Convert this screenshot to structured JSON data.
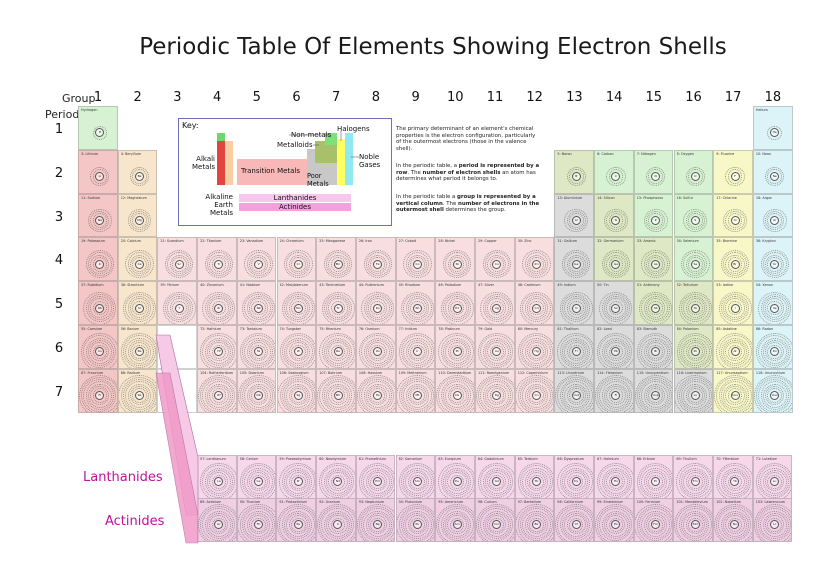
{
  "title": "Periodic Table Of Elements Showing Electron Shells",
  "axis": {
    "group_label": "Group",
    "period_label": "Period"
  },
  "groups": [
    "1",
    "2",
    "3",
    "4",
    "5",
    "6",
    "7",
    "8",
    "9",
    "10",
    "11",
    "12",
    "13",
    "14",
    "15",
    "16",
    "17",
    "18"
  ],
  "periods": [
    "1",
    "2",
    "3",
    "4",
    "5",
    "6",
    "7"
  ],
  "key": {
    "heading": "Key:",
    "nonmetals": "Non-metals",
    "halogens": "Halogens",
    "metalloids": "Metalloids",
    "alkali": "Alkali Metals",
    "noble": "Noble Gases",
    "transition": "Transition Metals",
    "poor": "Poor Metals",
    "alkaline": "Alkaline Earth Metals",
    "lanthanides": "Lanthanides",
    "actinides": "Actinides"
  },
  "explanation": {
    "p1_before": "The primary determinant of an element's chemical properties is the electron configuration, particularly of the outermost electrons (those in the valence shell).",
    "p2_before": "In the periodic table, a ",
    "p2_bold1": "period is represented by a row",
    "p2_mid": ". The ",
    "p2_bold2": "number of electron shells",
    "p2_after": " an atom has determines what period it belongs to.",
    "p3_before": "In the periodic table a ",
    "p3_bold1": "group is represented by a vertical column",
    "p3_mid": ". The ",
    "p3_bold2": "number of electrons in the outermost shell",
    "p3_after": " determines the group."
  },
  "series": {
    "lanthanides": "Lanthanides",
    "actinides": "Actinides"
  },
  "colors": {
    "alkali": "#f4c6c6",
    "alkaline": "#f7e6cc",
    "transition": "#f8dede",
    "poor": "#dcdcdc",
    "metalloid": "#dfe8c4",
    "nonmetal": "#d7f2d2",
    "halogen": "#f7f7c8",
    "noble": "#dcf3f7",
    "lanth": "#f6d8ea",
    "actin": "#f0cfe4"
  },
  "elements": [
    {
      "s": "H",
      "n": "Hydrogen",
      "g": 1,
      "p": 1,
      "c": "nonmetal"
    },
    {
      "s": "He",
      "n": "Helium",
      "g": 18,
      "p": 1,
      "c": "noble"
    },
    {
      "s": "Li",
      "n": "3: Lithium",
      "g": 1,
      "p": 2,
      "c": "alkali"
    },
    {
      "s": "Be",
      "n": "4: Beryllium",
      "g": 2,
      "p": 2,
      "c": "alkaline"
    },
    {
      "s": "B",
      "n": "5: Boron",
      "g": 13,
      "p": 2,
      "c": "metalloid"
    },
    {
      "s": "C",
      "n": "6: Carbon",
      "g": 14,
      "p": 2,
      "c": "nonmetal"
    },
    {
      "s": "N",
      "n": "7: Nitrogen",
      "g": 15,
      "p": 2,
      "c": "nonmetal"
    },
    {
      "s": "O",
      "n": "8: Oxygen",
      "g": 16,
      "p": 2,
      "c": "nonmetal"
    },
    {
      "s": "F",
      "n": "9: Fluorine",
      "g": 17,
      "p": 2,
      "c": "halogen"
    },
    {
      "s": "Ne",
      "n": "10: Neon",
      "g": 18,
      "p": 2,
      "c": "noble"
    },
    {
      "s": "Na",
      "n": "11: Sodium",
      "g": 1,
      "p": 3,
      "c": "alkali"
    },
    {
      "s": "Mg",
      "n": "12: Magnesium",
      "g": 2,
      "p": 3,
      "c": "alkaline"
    },
    {
      "s": "Al",
      "n": "13: Aluminium",
      "g": 13,
      "p": 3,
      "c": "poor"
    },
    {
      "s": "Si",
      "n": "14: Silicon",
      "g": 14,
      "p": 3,
      "c": "metalloid"
    },
    {
      "s": "P",
      "n": "15: Phosphorus",
      "g": 15,
      "p": 3,
      "c": "nonmetal"
    },
    {
      "s": "S",
      "n": "16: Sulfur",
      "g": 16,
      "p": 3,
      "c": "nonmetal"
    },
    {
      "s": "Cl",
      "n": "17: Chlorine",
      "g": 17,
      "p": 3,
      "c": "halogen"
    },
    {
      "s": "Ar",
      "n": "18: Argon",
      "g": 18,
      "p": 3,
      "c": "noble"
    },
    {
      "s": "K",
      "n": "19: Potassium",
      "g": 1,
      "p": 4,
      "c": "alkali"
    },
    {
      "s": "Ca",
      "n": "20: Calcium",
      "g": 2,
      "p": 4,
      "c": "alkaline"
    },
    {
      "s": "Sc",
      "n": "21: Scandium",
      "g": 3,
      "p": 4,
      "c": "transition"
    },
    {
      "s": "Ti",
      "n": "22: Titanium",
      "g": 4,
      "p": 4,
      "c": "transition"
    },
    {
      "s": "V",
      "n": "23: Vanadium",
      "g": 5,
      "p": 4,
      "c": "transition"
    },
    {
      "s": "Cr",
      "n": "24: Chromium",
      "g": 6,
      "p": 4,
      "c": "transition"
    },
    {
      "s": "Mn",
      "n": "25: Manganese",
      "g": 7,
      "p": 4,
      "c": "transition"
    },
    {
      "s": "Fe",
      "n": "26: Iron",
      "g": 8,
      "p": 4,
      "c": "transition"
    },
    {
      "s": "Co",
      "n": "27: Cobalt",
      "g": 9,
      "p": 4,
      "c": "transition"
    },
    {
      "s": "Ni",
      "n": "28: Nickel",
      "g": 10,
      "p": 4,
      "c": "transition"
    },
    {
      "s": "Cu",
      "n": "29: Copper",
      "g": 11,
      "p": 4,
      "c": "transition"
    },
    {
      "s": "Zn",
      "n": "30: Zinc",
      "g": 12,
      "p": 4,
      "c": "transition"
    },
    {
      "s": "Ga",
      "n": "31: Gallium",
      "g": 13,
      "p": 4,
      "c": "poor"
    },
    {
      "s": "Ge",
      "n": "32: Germanium",
      "g": 14,
      "p": 4,
      "c": "metalloid"
    },
    {
      "s": "As",
      "n": "33: Arsenic",
      "g": 15,
      "p": 4,
      "c": "metalloid"
    },
    {
      "s": "Se",
      "n": "34: Selenium",
      "g": 16,
      "p": 4,
      "c": "nonmetal"
    },
    {
      "s": "Br",
      "n": "35: Bromine",
      "g": 17,
      "p": 4,
      "c": "halogen"
    },
    {
      "s": "Kr",
      "n": "36: Krypton",
      "g": 18,
      "p": 4,
      "c": "noble"
    },
    {
      "s": "Rb",
      "n": "37: Rubidium",
      "g": 1,
      "p": 5,
      "c": "alkali"
    },
    {
      "s": "Sr",
      "n": "38: Strontium",
      "g": 2,
      "p": 5,
      "c": "alkaline"
    },
    {
      "s": "Y",
      "n": "39: Yttrium",
      "g": 3,
      "p": 5,
      "c": "transition"
    },
    {
      "s": "Zr",
      "n": "40: Zirconium",
      "g": 4,
      "p": 5,
      "c": "transition"
    },
    {
      "s": "Nb",
      "n": "41: Niobium",
      "g": 5,
      "p": 5,
      "c": "transition"
    },
    {
      "s": "Mo",
      "n": "42: Molybdenum",
      "g": 6,
      "p": 5,
      "c": "transition"
    },
    {
      "s": "Tc",
      "n": "43: Technetium",
      "g": 7,
      "p": 5,
      "c": "transition"
    },
    {
      "s": "Ru",
      "n": "44: Ruthenium",
      "g": 8,
      "p": 5,
      "c": "transition"
    },
    {
      "s": "Rh",
      "n": "45: Rhodium",
      "g": 9,
      "p": 5,
      "c": "transition"
    },
    {
      "s": "Pd",
      "n": "46: Palladium",
      "g": 10,
      "p": 5,
      "c": "transition"
    },
    {
      "s": "Ag",
      "n": "47: Silver",
      "g": 11,
      "p": 5,
      "c": "transition"
    },
    {
      "s": "Cd",
      "n": "48: Cadmium",
      "g": 12,
      "p": 5,
      "c": "transition"
    },
    {
      "s": "In",
      "n": "49: Indium",
      "g": 13,
      "p": 5,
      "c": "poor"
    },
    {
      "s": "Sn",
      "n": "50: Tin",
      "g": 14,
      "p": 5,
      "c": "poor"
    },
    {
      "s": "Sb",
      "n": "51: Antimony",
      "g": 15,
      "p": 5,
      "c": "metalloid"
    },
    {
      "s": "Te",
      "n": "52: Tellurium",
      "g": 16,
      "p": 5,
      "c": "metalloid"
    },
    {
      "s": "I",
      "n": "53: Iodine",
      "g": 17,
      "p": 5,
      "c": "halogen"
    },
    {
      "s": "Xe",
      "n": "54: Xenon",
      "g": 18,
      "p": 5,
      "c": "noble"
    },
    {
      "s": "Cs",
      "n": "55: Caesium",
      "g": 1,
      "p": 6,
      "c": "alkali"
    },
    {
      "s": "Ba",
      "n": "56: Barium",
      "g": 2,
      "p": 6,
      "c": "alkaline"
    },
    {
      "s": "Hf",
      "n": "72: Hafnium",
      "g": 4,
      "p": 6,
      "c": "transition"
    },
    {
      "s": "Ta",
      "n": "73: Tantalum",
      "g": 5,
      "p": 6,
      "c": "transition"
    },
    {
      "s": "W",
      "n": "74: Tungsten",
      "g": 6,
      "p": 6,
      "c": "transition"
    },
    {
      "s": "Re",
      "n": "75: Rhenium",
      "g": 7,
      "p": 6,
      "c": "transition"
    },
    {
      "s": "Os",
      "n": "76: Osmium",
      "g": 8,
      "p": 6,
      "c": "transition"
    },
    {
      "s": "Ir",
      "n": "77: Iridium",
      "g": 9,
      "p": 6,
      "c": "transition"
    },
    {
      "s": "Pt",
      "n": "78: Platinum",
      "g": 10,
      "p": 6,
      "c": "transition"
    },
    {
      "s": "Au",
      "n": "79: Gold",
      "g": 11,
      "p": 6,
      "c": "transition"
    },
    {
      "s": "Hg",
      "n": "80: Mercury",
      "g": 12,
      "p": 6,
      "c": "transition"
    },
    {
      "s": "Tl",
      "n": "81: Thallium",
      "g": 13,
      "p": 6,
      "c": "poor"
    },
    {
      "s": "Pb",
      "n": "82: Lead",
      "g": 14,
      "p": 6,
      "c": "poor"
    },
    {
      "s": "Bi",
      "n": "83: Bismuth",
      "g": 15,
      "p": 6,
      "c": "poor"
    },
    {
      "s": "Po",
      "n": "84: Polonium",
      "g": 16,
      "p": 6,
      "c": "metalloid"
    },
    {
      "s": "At",
      "n": "85: Astatine",
      "g": 17,
      "p": 6,
      "c": "halogen"
    },
    {
      "s": "Rn",
      "n": "86: Radon",
      "g": 18,
      "p": 6,
      "c": "noble"
    },
    {
      "s": "Fr",
      "n": "87: Francium",
      "g": 1,
      "p": 7,
      "c": "alkali"
    },
    {
      "s": "Ra",
      "n": "88: Radium",
      "g": 2,
      "p": 7,
      "c": "alkaline"
    },
    {
      "s": "Rf",
      "n": "104: Rutherfordium",
      "g": 4,
      "p": 7,
      "c": "transition"
    },
    {
      "s": "Db",
      "n": "105: Dubnium",
      "g": 5,
      "p": 7,
      "c": "transition"
    },
    {
      "s": "Sg",
      "n": "106: Seaborgium",
      "g": 6,
      "p": 7,
      "c": "transition"
    },
    {
      "s": "Bh",
      "n": "107: Bohrium",
      "g": 7,
      "p": 7,
      "c": "transition"
    },
    {
      "s": "Hs",
      "n": "108: Hassium",
      "g": 8,
      "p": 7,
      "c": "transition"
    },
    {
      "s": "Mt",
      "n": "109: Meitnerium",
      "g": 9,
      "p": 7,
      "c": "transition"
    },
    {
      "s": "Ds",
      "n": "110: Darmstadtium",
      "g": 10,
      "p": 7,
      "c": "transition"
    },
    {
      "s": "Rg",
      "n": "111: Roentgenium",
      "g": 11,
      "p": 7,
      "c": "transition"
    },
    {
      "s": "Cn",
      "n": "112: Copernicium",
      "g": 12,
      "p": 7,
      "c": "transition"
    },
    {
      "s": "Uut",
      "n": "113: Ununtrium",
      "g": 13,
      "p": 7,
      "c": "poor"
    },
    {
      "s": "Fl",
      "n": "114: Flerovium",
      "g": 14,
      "p": 7,
      "c": "poor"
    },
    {
      "s": "Uup",
      "n": "115: Ununpentium",
      "g": 15,
      "p": 7,
      "c": "poor"
    },
    {
      "s": "Lv",
      "n": "116: Livermorium",
      "g": 16,
      "p": 7,
      "c": "poor"
    },
    {
      "s": "Uus",
      "n": "117: Ununseptium",
      "g": 17,
      "p": 7,
      "c": "halogen"
    },
    {
      "s": "Uuo",
      "n": "118: Ununoctium",
      "g": 18,
      "p": 7,
      "c": "noble"
    }
  ],
  "lanthanides": [
    {
      "s": "La",
      "n": "57: Lanthanum"
    },
    {
      "s": "Ce",
      "n": "58: Cerium"
    },
    {
      "s": "Pr",
      "n": "59: Praseodymium"
    },
    {
      "s": "Nd",
      "n": "60: Neodymium"
    },
    {
      "s": "Pm",
      "n": "61: Promethium"
    },
    {
      "s": "Sm",
      "n": "62: Samarium"
    },
    {
      "s": "Eu",
      "n": "63: Europium"
    },
    {
      "s": "Gd",
      "n": "64: Gadolinium"
    },
    {
      "s": "Tb",
      "n": "65: Terbium"
    },
    {
      "s": "Dy",
      "n": "66: Dysprosium"
    },
    {
      "s": "Ho",
      "n": "67: Holmium"
    },
    {
      "s": "Er",
      "n": "68: Erbium"
    },
    {
      "s": "Tm",
      "n": "69: Thulium"
    },
    {
      "s": "Yb",
      "n": "70: Ytterbium"
    },
    {
      "s": "Lu",
      "n": "71: Lutetium"
    }
  ],
  "actinides": [
    {
      "s": "Ac",
      "n": "89: Actinium"
    },
    {
      "s": "Th",
      "n": "90: Thorium"
    },
    {
      "s": "Pa",
      "n": "91: Protactinium"
    },
    {
      "s": "U",
      "n": "92: Uranium"
    },
    {
      "s": "Np",
      "n": "93: Neptunium"
    },
    {
      "s": "Pu",
      "n": "94: Plutonium"
    },
    {
      "s": "Am",
      "n": "95: Americium"
    },
    {
      "s": "Cm",
      "n": "96: Curium"
    },
    {
      "s": "Bk",
      "n": "97: Berkelium"
    },
    {
      "s": "Cf",
      "n": "98: Californium"
    },
    {
      "s": "Es",
      "n": "99: Einsteinium"
    },
    {
      "s": "Fm",
      "n": "100: Fermium"
    },
    {
      "s": "Md",
      "n": "101: Mendelevium"
    },
    {
      "s": "No",
      "n": "102: Nobelium"
    },
    {
      "s": "Lr",
      "n": "103: Lawrencium"
    }
  ]
}
